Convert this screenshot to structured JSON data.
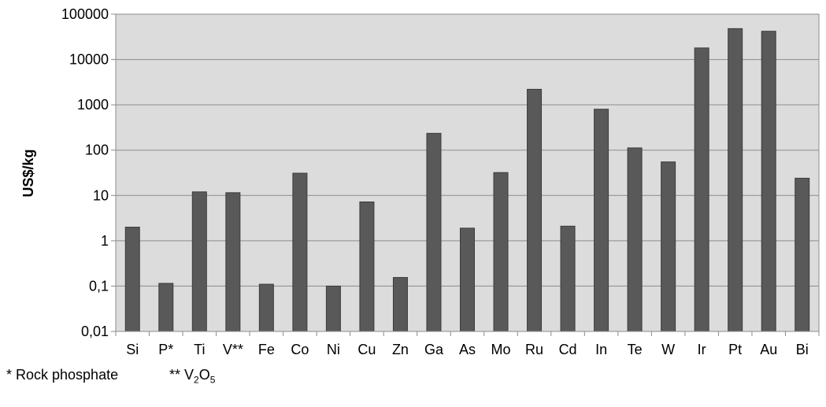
{
  "chart_data": {
    "type": "bar",
    "title": "",
    "xlabel": "",
    "ylabel": "US$/kg",
    "yscale": "log",
    "ylim": [
      0.01,
      100000
    ],
    "yticks": [
      "0,01",
      "0,1",
      "1",
      "10",
      "100",
      "1000",
      "10000",
      "100000"
    ],
    "grid": true,
    "legend": "none",
    "categories": [
      "Si",
      "P*",
      "Ti",
      "V**",
      "Fe",
      "Co",
      "Ni",
      "Cu",
      "Zn",
      "Ga",
      "As",
      "Mo",
      "Ru",
      "Cd",
      "In",
      "Te",
      "W",
      "Ir",
      "Pt",
      "Au",
      "Bi"
    ],
    "values": [
      2,
      0.115,
      12,
      11.5,
      0.11,
      31,
      0.1,
      7.2,
      0.155,
      235,
      1.9,
      32,
      2200,
      2.1,
      800,
      112,
      55,
      18000,
      48000,
      42000,
      24
    ]
  },
  "notes": {
    "rock_phosphate": "* Rock phosphate",
    "v2o5_prefix": "** V",
    "v2o5_sub1": "2",
    "v2o5_mid": "O",
    "v2o5_sub2": "5"
  },
  "colors": {
    "plot_background": "#dcdcdc",
    "bar_fill": "#595959",
    "bar_stroke": "#3c3c3c",
    "grid": "#8c8c8c",
    "axis": "#8c8c8c"
  }
}
